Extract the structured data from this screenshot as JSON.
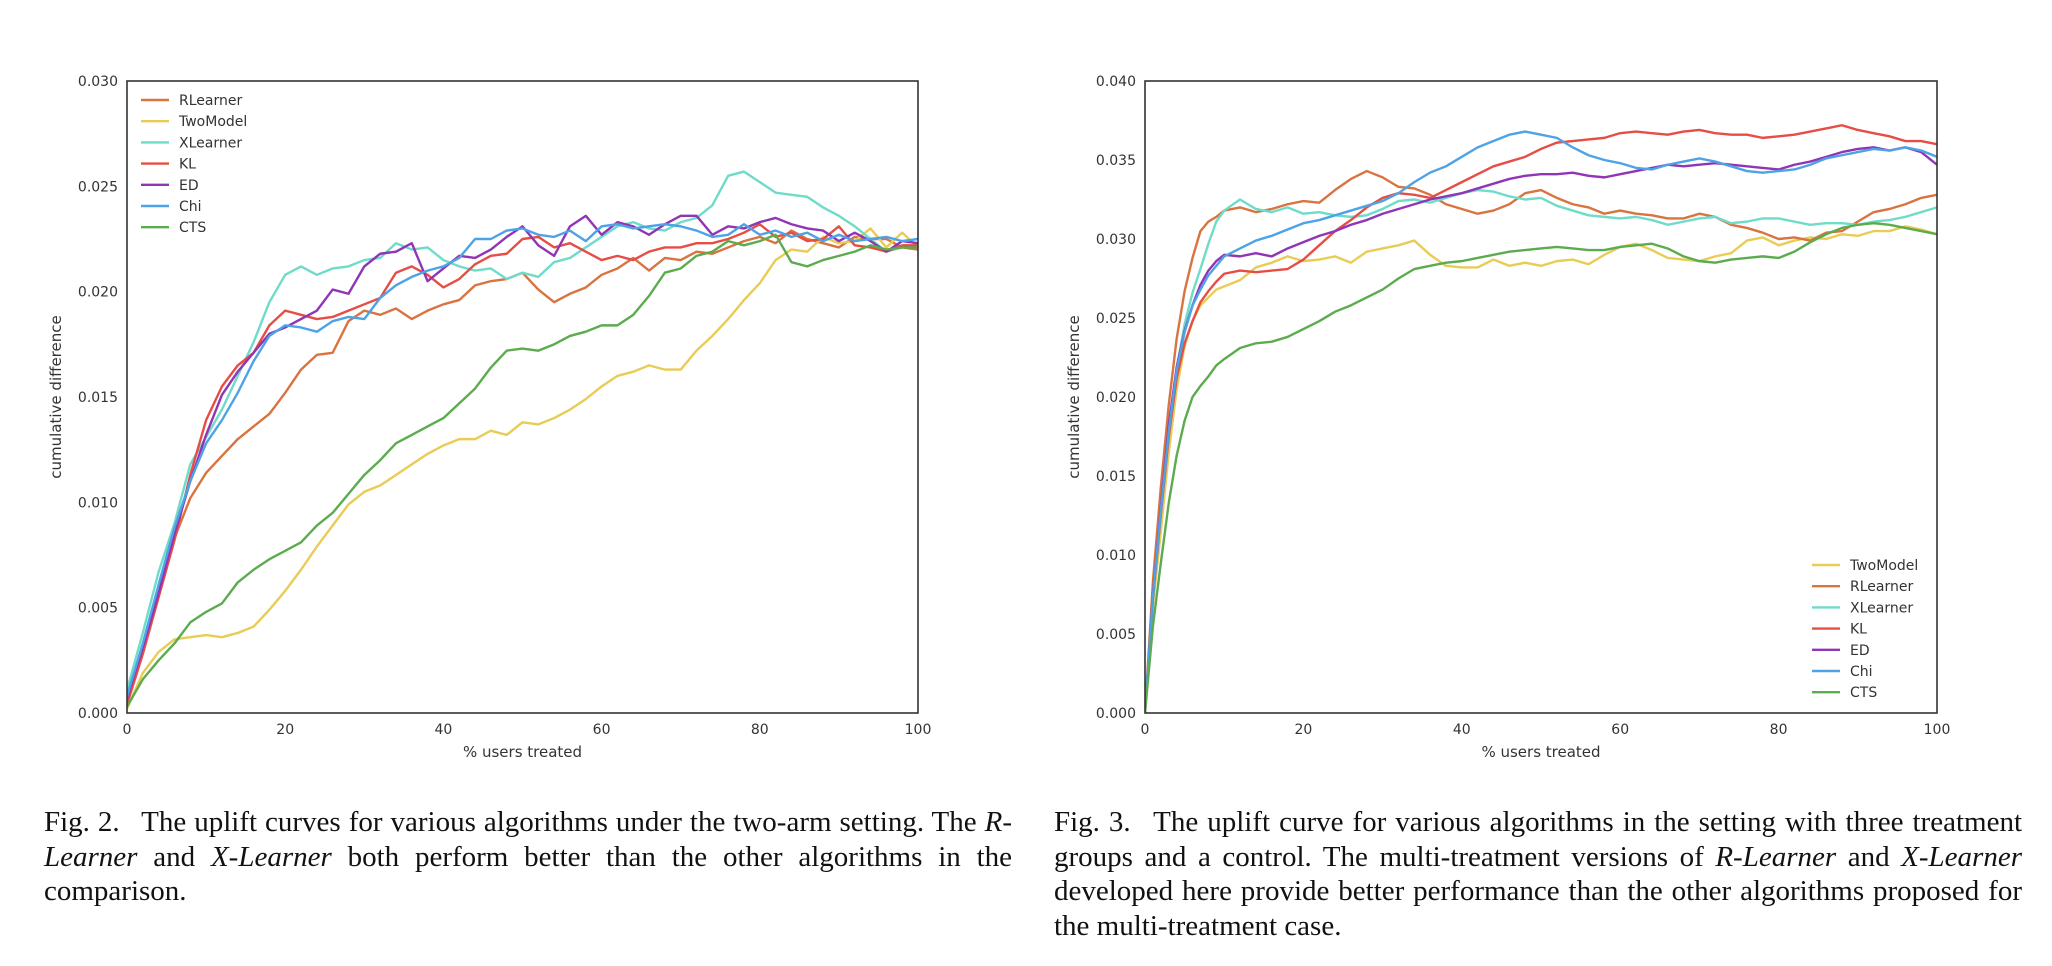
{
  "chart_data": [
    {
      "type": "line",
      "xlabel": "% users treated",
      "ylabel": "cumulative difference",
      "xlim": [
        0,
        100
      ],
      "ylim": [
        0,
        0.03
      ],
      "xticks": [
        0,
        20,
        40,
        60,
        80,
        100
      ],
      "yticks": [
        0.0,
        0.005,
        0.01,
        0.015,
        0.02,
        0.025,
        0.03
      ],
      "ytick_labels": [
        "0.000",
        "0.005",
        "0.010",
        "0.015",
        "0.020",
        "0.025",
        "0.030"
      ],
      "grid": false,
      "legend_position": "top-left",
      "x": [
        0,
        2,
        4,
        6,
        8,
        10,
        12,
        14,
        16,
        18,
        20,
        22,
        24,
        26,
        28,
        30,
        32,
        34,
        36,
        38,
        40,
        42,
        44,
        46,
        48,
        50,
        52,
        54,
        56,
        58,
        60,
        62,
        64,
        66,
        68,
        70,
        72,
        74,
        76,
        78,
        80,
        82,
        84,
        86,
        88,
        90,
        92,
        94,
        96,
        98,
        100
      ],
      "series": [
        {
          "name": "RLearner",
          "color": "#d9733f",
          "values": [
            0.0006,
            0.0031,
            0.0057,
            0.0083,
            0.0102,
            0.0114,
            0.0122,
            0.013,
            0.0136,
            0.0142,
            0.0152,
            0.0163,
            0.017,
            0.0171,
            0.0186,
            0.0191,
            0.0189,
            0.0192,
            0.0187,
            0.0191,
            0.0194,
            0.0196,
            0.0203,
            0.0205,
            0.0206,
            0.0209,
            0.0201,
            0.0195,
            0.0199,
            0.0202,
            0.0208,
            0.0211,
            0.0216,
            0.021,
            0.0216,
            0.0215,
            0.0219,
            0.0218,
            0.0221,
            0.0224,
            0.0226,
            0.0223,
            0.0229,
            0.0225,
            0.0223,
            0.0221,
            0.0226,
            0.0225,
            0.0225,
            0.0221,
            0.022
          ]
        },
        {
          "name": "TwoModel",
          "color": "#e8cc55",
          "values": [
            0.0002,
            0.0019,
            0.0029,
            0.0035,
            0.0036,
            0.0037,
            0.0036,
            0.0038,
            0.0041,
            0.0049,
            0.0058,
            0.0068,
            0.0079,
            0.0089,
            0.0099,
            0.0105,
            0.0108,
            0.0113,
            0.0118,
            0.0123,
            0.0127,
            0.013,
            0.013,
            0.0134,
            0.0132,
            0.0138,
            0.0137,
            0.014,
            0.0144,
            0.0149,
            0.0155,
            0.016,
            0.0162,
            0.0165,
            0.0163,
            0.0163,
            0.0172,
            0.0179,
            0.0187,
            0.0196,
            0.0204,
            0.0215,
            0.022,
            0.0219,
            0.0226,
            0.0223,
            0.0224,
            0.023,
            0.0221,
            0.0228,
            0.0221
          ]
        },
        {
          "name": "XLearner",
          "color": "#6fdbc9",
          "values": [
            0.0011,
            0.0038,
            0.0067,
            0.009,
            0.0118,
            0.0131,
            0.0144,
            0.016,
            0.0176,
            0.0195,
            0.0208,
            0.0212,
            0.0208,
            0.0211,
            0.0212,
            0.0215,
            0.0216,
            0.0223,
            0.022,
            0.0221,
            0.0215,
            0.0212,
            0.021,
            0.0211,
            0.0206,
            0.0209,
            0.0207,
            0.0214,
            0.0216,
            0.0221,
            0.0226,
            0.0231,
            0.0233,
            0.023,
            0.0229,
            0.0233,
            0.0235,
            0.0241,
            0.0255,
            0.0257,
            0.0252,
            0.0247,
            0.0246,
            0.0245,
            0.024,
            0.0236,
            0.0231,
            0.0225,
            0.0219,
            0.0221,
            0.0222
          ]
        },
        {
          "name": "KL",
          "color": "#e64d45",
          "values": [
            0.0004,
            0.0028,
            0.0055,
            0.0082,
            0.0113,
            0.0139,
            0.0155,
            0.0165,
            0.0171,
            0.0184,
            0.0191,
            0.0189,
            0.0187,
            0.0188,
            0.0191,
            0.0194,
            0.0197,
            0.0209,
            0.0212,
            0.0208,
            0.0202,
            0.0206,
            0.0213,
            0.0217,
            0.0218,
            0.0225,
            0.0226,
            0.0221,
            0.0223,
            0.0219,
            0.0215,
            0.0217,
            0.0215,
            0.0219,
            0.0221,
            0.0221,
            0.0223,
            0.0223,
            0.0225,
            0.0228,
            0.0232,
            0.0226,
            0.0228,
            0.0224,
            0.0225,
            0.0231,
            0.0222,
            0.0221,
            0.0219,
            0.0222,
            0.0222
          ]
        },
        {
          "name": "ED",
          "color": "#9035b5",
          "values": [
            0.0007,
            0.0031,
            0.0057,
            0.0085,
            0.011,
            0.0132,
            0.0151,
            0.0162,
            0.0171,
            0.018,
            0.0183,
            0.0187,
            0.0191,
            0.0201,
            0.0199,
            0.0212,
            0.0218,
            0.0219,
            0.0223,
            0.0205,
            0.0211,
            0.0217,
            0.0216,
            0.022,
            0.0226,
            0.0231,
            0.0222,
            0.0217,
            0.0231,
            0.0236,
            0.0227,
            0.0233,
            0.0231,
            0.0227,
            0.0232,
            0.0236,
            0.0236,
            0.0227,
            0.0231,
            0.023,
            0.0233,
            0.0235,
            0.0232,
            0.023,
            0.0229,
            0.0224,
            0.0228,
            0.0224,
            0.0219,
            0.0224,
            0.0223
          ]
        },
        {
          "name": "Chi",
          "color": "#4da3e5",
          "values": [
            0.0008,
            0.0033,
            0.0061,
            0.0088,
            0.011,
            0.0128,
            0.0139,
            0.0152,
            0.0167,
            0.0179,
            0.0184,
            0.0183,
            0.0181,
            0.0186,
            0.0188,
            0.0187,
            0.0197,
            0.0203,
            0.0207,
            0.021,
            0.0212,
            0.0216,
            0.0225,
            0.0225,
            0.0229,
            0.023,
            0.0227,
            0.0226,
            0.0229,
            0.0224,
            0.0231,
            0.0232,
            0.023,
            0.0231,
            0.0232,
            0.0231,
            0.0229,
            0.0226,
            0.0227,
            0.0232,
            0.0227,
            0.0229,
            0.0226,
            0.0228,
            0.0224,
            0.0227,
            0.0224,
            0.0225,
            0.0226,
            0.0224,
            0.0225
          ]
        },
        {
          "name": "CTS",
          "color": "#5cab4e",
          "values": [
            0.0003,
            0.0016,
            0.0025,
            0.0033,
            0.0043,
            0.0048,
            0.0052,
            0.0062,
            0.0068,
            0.0073,
            0.0077,
            0.0081,
            0.0089,
            0.0095,
            0.0104,
            0.0113,
            0.012,
            0.0128,
            0.0132,
            0.0136,
            0.014,
            0.0147,
            0.0154,
            0.0164,
            0.0172,
            0.0173,
            0.0172,
            0.0175,
            0.0179,
            0.0181,
            0.0184,
            0.0184,
            0.0189,
            0.0198,
            0.0209,
            0.0211,
            0.0217,
            0.0219,
            0.0224,
            0.0222,
            0.0224,
            0.0227,
            0.0214,
            0.0212,
            0.0215,
            0.0217,
            0.0219,
            0.0222,
            0.022,
            0.0221,
            0.0221
          ]
        }
      ]
    },
    {
      "type": "line",
      "xlabel": "% users treated",
      "ylabel": "cumulative difference",
      "xlim": [
        0,
        100
      ],
      "ylim": [
        0,
        0.04
      ],
      "xticks": [
        0,
        20,
        40,
        60,
        80,
        100
      ],
      "yticks": [
        0.0,
        0.005,
        0.01,
        0.015,
        0.02,
        0.025,
        0.03,
        0.035,
        0.04
      ],
      "ytick_labels": [
        "0.000",
        "0.005",
        "0.010",
        "0.015",
        "0.020",
        "0.025",
        "0.030",
        "0.035",
        "0.040"
      ],
      "grid": false,
      "legend_position": "bottom-right",
      "x": [
        0,
        1,
        2,
        3,
        4,
        5,
        6,
        7,
        8,
        9,
        10,
        12,
        14,
        16,
        18,
        20,
        22,
        24,
        26,
        28,
        30,
        32,
        34,
        36,
        38,
        40,
        42,
        44,
        46,
        48,
        50,
        52,
        54,
        56,
        58,
        60,
        62,
        64,
        66,
        68,
        70,
        72,
        74,
        76,
        78,
        80,
        82,
        84,
        86,
        88,
        90,
        92,
        94,
        96,
        98,
        100
      ],
      "series": [
        {
          "name": "TwoModel",
          "color": "#e8cc55",
          "values": [
            0.0,
            0.0068,
            0.0115,
            0.0165,
            0.0205,
            0.0232,
            0.0248,
            0.0258,
            0.0263,
            0.0268,
            0.027,
            0.0274,
            0.0282,
            0.0285,
            0.0289,
            0.0286,
            0.0287,
            0.0289,
            0.0285,
            0.0292,
            0.0294,
            0.0296,
            0.0299,
            0.029,
            0.0283,
            0.0282,
            0.0282,
            0.0287,
            0.0283,
            0.0285,
            0.0283,
            0.0286,
            0.0287,
            0.0284,
            0.029,
            0.0295,
            0.0297,
            0.0293,
            0.0288,
            0.0287,
            0.0286,
            0.0289,
            0.0291,
            0.0299,
            0.0301,
            0.0296,
            0.0299,
            0.0301,
            0.03,
            0.0303,
            0.0302,
            0.0305,
            0.0305,
            0.0308,
            0.0306,
            0.0303
          ]
        },
        {
          "name": "RLearner",
          "color": "#d9733f",
          "values": [
            0.0,
            0.0083,
            0.0143,
            0.0195,
            0.0237,
            0.0267,
            0.0288,
            0.0305,
            0.0311,
            0.0314,
            0.0318,
            0.032,
            0.0317,
            0.0319,
            0.0322,
            0.0324,
            0.0323,
            0.0331,
            0.0338,
            0.0343,
            0.0339,
            0.0333,
            0.0332,
            0.0328,
            0.0322,
            0.0319,
            0.0316,
            0.0318,
            0.0322,
            0.0329,
            0.0331,
            0.0326,
            0.0322,
            0.032,
            0.0316,
            0.0318,
            0.0316,
            0.0315,
            0.0313,
            0.0313,
            0.0316,
            0.0314,
            0.0309,
            0.0307,
            0.0304,
            0.03,
            0.0301,
            0.0299,
            0.0304,
            0.0305,
            0.0311,
            0.0317,
            0.0319,
            0.0322,
            0.0326,
            0.0328
          ]
        },
        {
          "name": "XLearner",
          "color": "#6fdbc9",
          "values": [
            0.0,
            0.0071,
            0.0126,
            0.0175,
            0.0218,
            0.0246,
            0.0266,
            0.0281,
            0.0297,
            0.0311,
            0.0318,
            0.0325,
            0.0319,
            0.0317,
            0.032,
            0.0316,
            0.0317,
            0.0315,
            0.0314,
            0.0315,
            0.0319,
            0.0324,
            0.0325,
            0.0323,
            0.0326,
            0.0329,
            0.0331,
            0.033,
            0.0327,
            0.0325,
            0.0326,
            0.0321,
            0.0318,
            0.0315,
            0.0314,
            0.0313,
            0.0314,
            0.0312,
            0.0309,
            0.0311,
            0.0313,
            0.0314,
            0.031,
            0.0311,
            0.0313,
            0.0313,
            0.0311,
            0.0309,
            0.031,
            0.031,
            0.0309,
            0.0311,
            0.0312,
            0.0314,
            0.0317,
            0.032
          ]
        },
        {
          "name": "KL",
          "color": "#e64d45",
          "values": [
            0.0,
            0.0072,
            0.0126,
            0.0175,
            0.0212,
            0.0234,
            0.0248,
            0.026,
            0.0267,
            0.0273,
            0.0278,
            0.028,
            0.0279,
            0.028,
            0.0281,
            0.0287,
            0.0296,
            0.0305,
            0.0312,
            0.032,
            0.0326,
            0.0329,
            0.0328,
            0.0326,
            0.0331,
            0.0336,
            0.0341,
            0.0346,
            0.0349,
            0.0352,
            0.0357,
            0.0361,
            0.0362,
            0.0363,
            0.0364,
            0.0367,
            0.0368,
            0.0367,
            0.0366,
            0.0368,
            0.0369,
            0.0367,
            0.0366,
            0.0366,
            0.0364,
            0.0365,
            0.0366,
            0.0368,
            0.037,
            0.0372,
            0.0369,
            0.0367,
            0.0365,
            0.0362,
            0.0362,
            0.036
          ]
        },
        {
          "name": "ED",
          "color": "#9035b5",
          "values": [
            0.0,
            0.0075,
            0.013,
            0.0182,
            0.0219,
            0.0242,
            0.0258,
            0.0271,
            0.028,
            0.0286,
            0.029,
            0.0289,
            0.0291,
            0.0289,
            0.0294,
            0.0298,
            0.0302,
            0.0305,
            0.0309,
            0.0312,
            0.0316,
            0.0319,
            0.0322,
            0.0325,
            0.0327,
            0.0329,
            0.0332,
            0.0335,
            0.0338,
            0.034,
            0.0341,
            0.0341,
            0.0342,
            0.034,
            0.0339,
            0.0341,
            0.0343,
            0.0345,
            0.0347,
            0.0346,
            0.0347,
            0.0348,
            0.0347,
            0.0346,
            0.0345,
            0.0344,
            0.0347,
            0.0349,
            0.0352,
            0.0355,
            0.0357,
            0.0358,
            0.0356,
            0.0358,
            0.0355,
            0.0347
          ]
        },
        {
          "name": "Chi",
          "color": "#4da3e5",
          "values": [
            0.0,
            0.0074,
            0.0128,
            0.0178,
            0.0217,
            0.0241,
            0.0258,
            0.0268,
            0.0277,
            0.0283,
            0.0289,
            0.0294,
            0.0299,
            0.0302,
            0.0306,
            0.031,
            0.0312,
            0.0315,
            0.0318,
            0.0321,
            0.0324,
            0.0329,
            0.0336,
            0.0342,
            0.0346,
            0.0352,
            0.0358,
            0.0362,
            0.0366,
            0.0368,
            0.0366,
            0.0364,
            0.0358,
            0.0353,
            0.035,
            0.0348,
            0.0345,
            0.0344,
            0.0347,
            0.0349,
            0.0351,
            0.0349,
            0.0346,
            0.0343,
            0.0342,
            0.0343,
            0.0344,
            0.0347,
            0.0351,
            0.0353,
            0.0355,
            0.0357,
            0.0356,
            0.0358,
            0.0356,
            0.0352
          ]
        },
        {
          "name": "CTS",
          "color": "#5cab4e",
          "values": [
            0.0,
            0.0055,
            0.0095,
            0.0133,
            0.0163,
            0.0185,
            0.02,
            0.0207,
            0.0213,
            0.022,
            0.0224,
            0.0231,
            0.0234,
            0.0235,
            0.0238,
            0.0243,
            0.0248,
            0.0254,
            0.0258,
            0.0263,
            0.0268,
            0.0275,
            0.0281,
            0.0283,
            0.0285,
            0.0286,
            0.0288,
            0.029,
            0.0292,
            0.0293,
            0.0294,
            0.0295,
            0.0294,
            0.0293,
            0.0293,
            0.0295,
            0.0296,
            0.0297,
            0.0294,
            0.0289,
            0.0286,
            0.0285,
            0.0287,
            0.0288,
            0.0289,
            0.0288,
            0.0292,
            0.0298,
            0.0303,
            0.0307,
            0.0309,
            0.031,
            0.0309,
            0.0307,
            0.0305,
            0.0303
          ]
        }
      ]
    }
  ],
  "captions": [
    {
      "label": "Fig. 2.",
      "segments": [
        "The uplift curves for various algorithms under the two-arm setting. The ",
        "R-Learner",
        " and ",
        "X-Learner",
        " both perform better than the other algorithms in the comparison."
      ]
    },
    {
      "label": "Fig. 3.",
      "segments": [
        "The uplift curve for various algorithms in the setting with three treatment groups and a control. The multi-treatment versions of ",
        "R-Learner",
        " and ",
        "X-Learner",
        " developed here provide better performance than the other algorithms proposed for the multi-treatment case."
      ]
    }
  ]
}
